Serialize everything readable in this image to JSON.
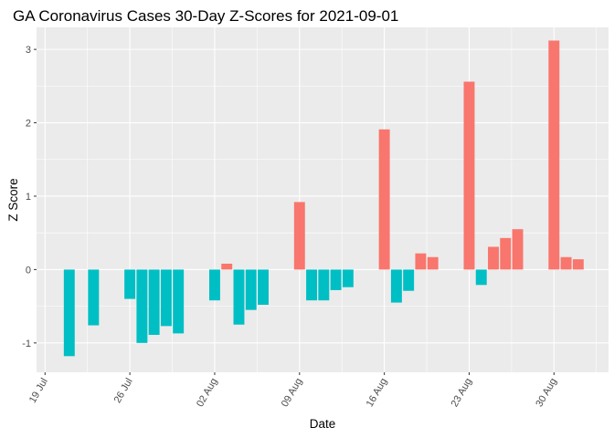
{
  "chart_data": {
    "type": "bar",
    "title": "GA Coronavirus Cases 30-Day Z-Scores for 2021-09-01",
    "xlabel": "Date",
    "ylabel": "Z Score",
    "ylim": [
      -1.4,
      3.3
    ],
    "yticks": [
      -1,
      0,
      1,
      2,
      3
    ],
    "xticks": [
      {
        "label": "19 Jul",
        "day": 0
      },
      {
        "label": "26 Jul",
        "day": 7
      },
      {
        "label": "02 Aug",
        "day": 14
      },
      {
        "label": "09 Aug",
        "day": 21
      },
      {
        "label": "16 Aug",
        "day": 28
      },
      {
        "label": "23 Aug",
        "day": 35
      },
      {
        "label": "30 Aug",
        "day": 42
      }
    ],
    "start_date": "2021-07-19",
    "xlim_days": [
      -0.7,
      46.5
    ],
    "colors": {
      "positive": "#F8766D",
      "negative": "#00BFC4"
    },
    "bars": [
      {
        "date": "2021-07-21",
        "day": 2,
        "value": -1.18
      },
      {
        "date": "2021-07-23",
        "day": 4,
        "value": -0.76
      },
      {
        "date": "2021-07-26",
        "day": 7,
        "value": -0.4
      },
      {
        "date": "2021-07-27",
        "day": 8,
        "value": -1.0
      },
      {
        "date": "2021-07-28",
        "day": 9,
        "value": -0.89
      },
      {
        "date": "2021-07-29",
        "day": 10,
        "value": -0.77
      },
      {
        "date": "2021-07-30",
        "day": 11,
        "value": -0.87
      },
      {
        "date": "2021-08-02",
        "day": 14,
        "value": -0.42
      },
      {
        "date": "2021-08-03",
        "day": 15,
        "value": 0.08
      },
      {
        "date": "2021-08-04",
        "day": 16,
        "value": -0.75
      },
      {
        "date": "2021-08-05",
        "day": 17,
        "value": -0.55
      },
      {
        "date": "2021-08-06",
        "day": 18,
        "value": -0.48
      },
      {
        "date": "2021-08-09",
        "day": 21,
        "value": 0.92
      },
      {
        "date": "2021-08-10",
        "day": 22,
        "value": -0.42
      },
      {
        "date": "2021-08-11",
        "day": 23,
        "value": -0.42
      },
      {
        "date": "2021-08-12",
        "day": 24,
        "value": -0.28
      },
      {
        "date": "2021-08-13",
        "day": 25,
        "value": -0.24
      },
      {
        "date": "2021-08-16",
        "day": 28,
        "value": 1.91
      },
      {
        "date": "2021-08-17",
        "day": 29,
        "value": -0.45
      },
      {
        "date": "2021-08-18",
        "day": 30,
        "value": -0.29
      },
      {
        "date": "2021-08-19",
        "day": 31,
        "value": 0.22
      },
      {
        "date": "2021-08-20",
        "day": 32,
        "value": 0.17
      },
      {
        "date": "2021-08-23",
        "day": 35,
        "value": 2.56
      },
      {
        "date": "2021-08-24",
        "day": 36,
        "value": -0.21
      },
      {
        "date": "2021-08-25",
        "day": 37,
        "value": 0.31
      },
      {
        "date": "2021-08-26",
        "day": 38,
        "value": 0.43
      },
      {
        "date": "2021-08-27",
        "day": 39,
        "value": 0.55
      },
      {
        "date": "2021-08-30",
        "day": 42,
        "value": 3.12
      },
      {
        "date": "2021-08-31",
        "day": 43,
        "value": 0.17
      },
      {
        "date": "2021-09-01",
        "day": 44,
        "value": 0.14
      }
    ]
  }
}
